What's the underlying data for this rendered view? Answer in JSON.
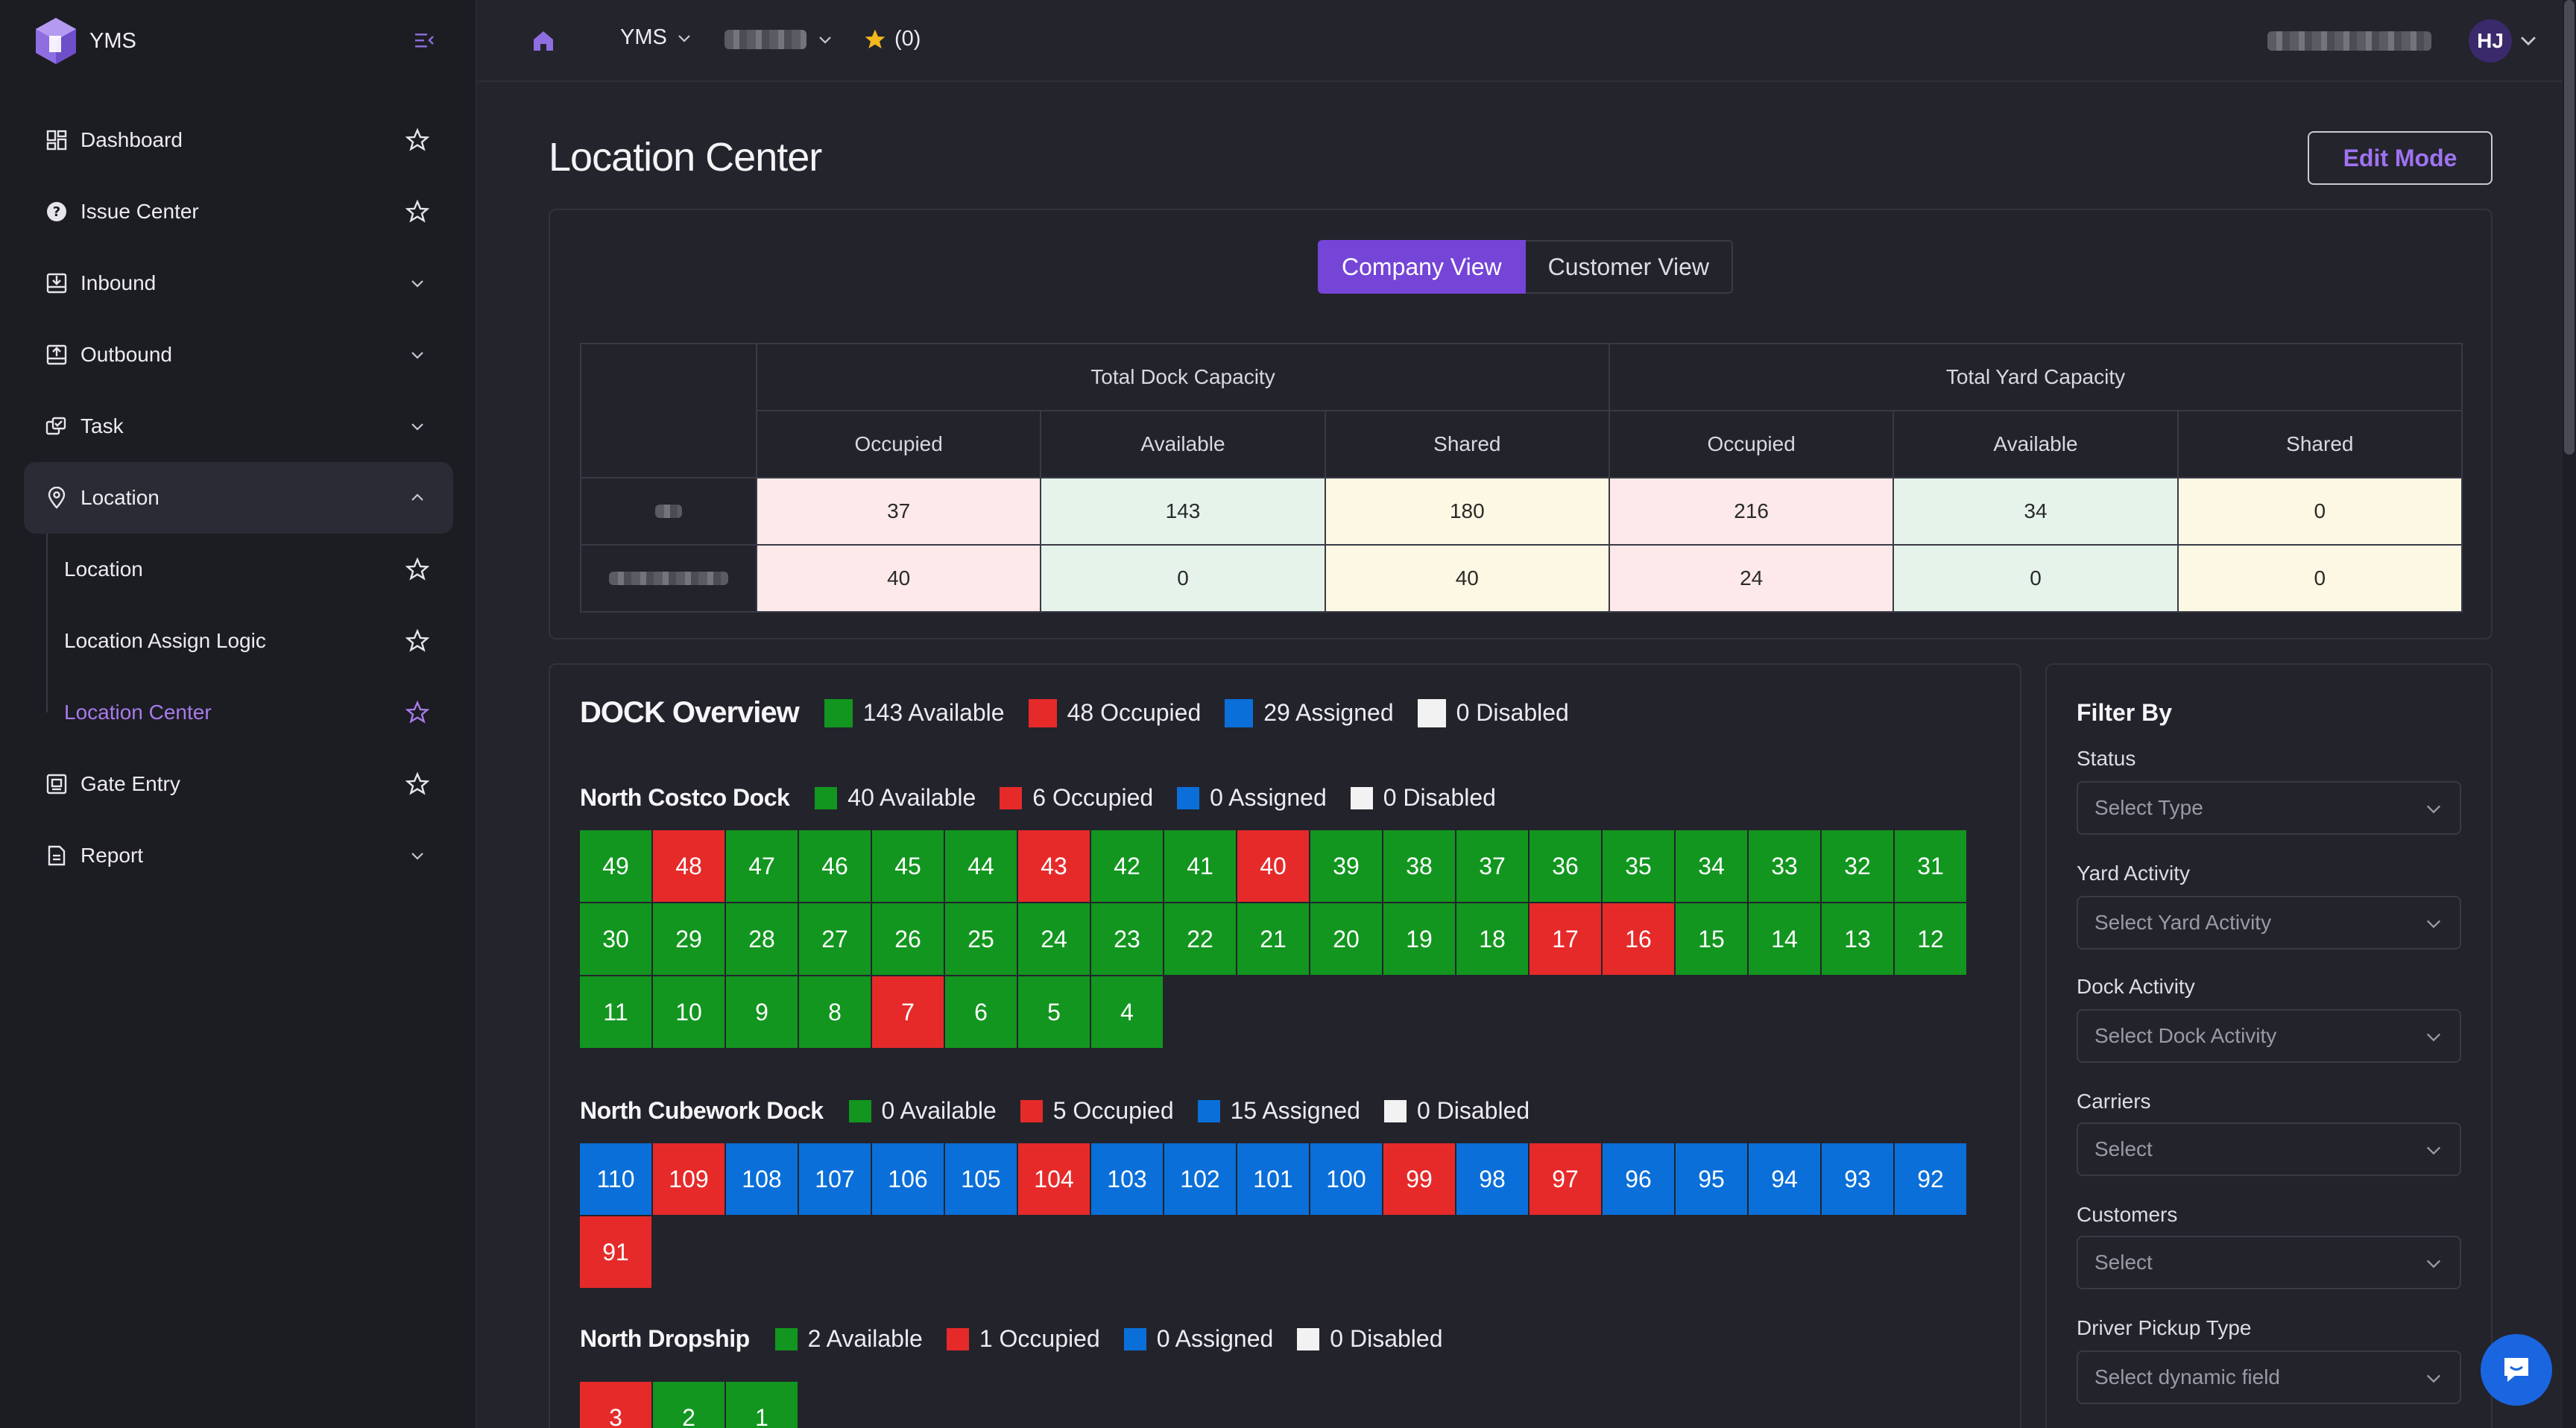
{
  "app": {
    "name": "YMS",
    "accent": "#7445d6"
  },
  "sidebar": {
    "items": [
      {
        "label": "Dashboard",
        "icon": "dashboard-icon",
        "tail": "star"
      },
      {
        "label": "Issue Center",
        "icon": "help-circle-icon",
        "tail": "star"
      },
      {
        "label": "Inbound",
        "icon": "inbound-icon",
        "tail": "chevron-down"
      },
      {
        "label": "Outbound",
        "icon": "outbound-icon",
        "tail": "chevron-down"
      },
      {
        "label": "Task",
        "icon": "task-icon",
        "tail": "chevron-down"
      },
      {
        "label": "Location",
        "icon": "map-pin-icon",
        "tail": "chevron-up"
      }
    ],
    "location_sub": [
      {
        "label": "Location"
      },
      {
        "label": "Location Assign Logic"
      },
      {
        "label": "Location Center"
      }
    ],
    "bottom_items": [
      {
        "label": "Gate Entry",
        "icon": "gate-icon",
        "tail": "star"
      },
      {
        "label": "Report",
        "icon": "report-icon",
        "tail": "chevron-down"
      }
    ]
  },
  "topbar": {
    "app_select": "YMS",
    "favorites": "(0)",
    "avatar_initials": "HJ"
  },
  "page": {
    "title": "Location Center",
    "edit_button": "Edit Mode",
    "view_toggle": {
      "company": "Company View",
      "customer": "Customer View"
    }
  },
  "capacity": {
    "group_headers": [
      "Total Dock Capacity",
      "Total Yard Capacity"
    ],
    "sub_headers": [
      "Occupied",
      "Available",
      "Shared",
      "Occupied",
      "Available",
      "Shared"
    ],
    "rows": [
      {
        "values": [
          "37",
          "143",
          "180",
          "216",
          "34",
          "0"
        ]
      },
      {
        "values": [
          "40",
          "0",
          "40",
          "24",
          "0",
          "0"
        ]
      }
    ]
  },
  "dock_overview": {
    "title": "DOCK Overview",
    "legend": [
      "143 Available",
      "48 Occupied",
      "29 Assigned",
      "0 Disabled"
    ],
    "docks": [
      {
        "name": "North Costco Dock",
        "legend": [
          "40 Available",
          "6 Occupied",
          "0 Assigned",
          "0 Disabled"
        ],
        "cells": [
          [
            "49",
            "g"
          ],
          [
            "48",
            "r"
          ],
          [
            "47",
            "g"
          ],
          [
            "46",
            "g"
          ],
          [
            "45",
            "g"
          ],
          [
            "44",
            "g"
          ],
          [
            "43",
            "r"
          ],
          [
            "42",
            "g"
          ],
          [
            "41",
            "g"
          ],
          [
            "40",
            "r"
          ],
          [
            "39",
            "g"
          ],
          [
            "38",
            "g"
          ],
          [
            "37",
            "g"
          ],
          [
            "36",
            "g"
          ],
          [
            "35",
            "g"
          ],
          [
            "34",
            "g"
          ],
          [
            "33",
            "g"
          ],
          [
            "32",
            "g"
          ],
          [
            "31",
            "g"
          ],
          [
            "30",
            "g"
          ],
          [
            "29",
            "g"
          ],
          [
            "28",
            "g"
          ],
          [
            "27",
            "g"
          ],
          [
            "26",
            "g"
          ],
          [
            "25",
            "g"
          ],
          [
            "24",
            "g"
          ],
          [
            "23",
            "g"
          ],
          [
            "22",
            "g"
          ],
          [
            "21",
            "g"
          ],
          [
            "20",
            "g"
          ],
          [
            "19",
            "g"
          ],
          [
            "18",
            "g"
          ],
          [
            "17",
            "r"
          ],
          [
            "16",
            "r"
          ],
          [
            "15",
            "g"
          ],
          [
            "14",
            "g"
          ],
          [
            "13",
            "g"
          ],
          [
            "12",
            "g"
          ],
          [
            "11",
            "g"
          ],
          [
            "10",
            "g"
          ],
          [
            "9",
            "g"
          ],
          [
            "8",
            "g"
          ],
          [
            "7",
            "r"
          ],
          [
            "6",
            "g"
          ],
          [
            "5",
            "g"
          ],
          [
            "4",
            "g"
          ]
        ]
      },
      {
        "name": "North Cubework Dock",
        "legend": [
          "0 Available",
          "5 Occupied",
          "15 Assigned",
          "0 Disabled"
        ],
        "cells": [
          [
            "110",
            "b"
          ],
          [
            "109",
            "r"
          ],
          [
            "108",
            "b"
          ],
          [
            "107",
            "b"
          ],
          [
            "106",
            "b"
          ],
          [
            "105",
            "b"
          ],
          [
            "104",
            "r"
          ],
          [
            "103",
            "b"
          ],
          [
            "102",
            "b"
          ],
          [
            "101",
            "b"
          ],
          [
            "100",
            "b"
          ],
          [
            "99",
            "r"
          ],
          [
            "98",
            "b"
          ],
          [
            "97",
            "r"
          ],
          [
            "96",
            "b"
          ],
          [
            "95",
            "b"
          ],
          [
            "94",
            "b"
          ],
          [
            "93",
            "b"
          ],
          [
            "92",
            "b"
          ],
          [
            "91",
            "r"
          ]
        ]
      },
      {
        "name": "North Dropship",
        "legend": [
          "2 Available",
          "1 Occupied",
          "0 Assigned",
          "0 Disabled"
        ],
        "cells": [
          [
            "3",
            "r"
          ],
          [
            "2",
            "g"
          ],
          [
            "1",
            "g"
          ]
        ]
      }
    ]
  },
  "filter": {
    "title": "Filter By",
    "fields": [
      {
        "label": "Status",
        "placeholder": "Select Type"
      },
      {
        "label": "Yard Activity",
        "placeholder": "Select Yard Activity"
      },
      {
        "label": "Dock Activity",
        "placeholder": "Select Dock Activity"
      },
      {
        "label": "Carriers",
        "placeholder": "Select"
      },
      {
        "label": "Customers",
        "placeholder": "Select"
      },
      {
        "label": "Driver Pickup Type",
        "placeholder": "Select dynamic field"
      }
    ]
  },
  "colors": {
    "available": "#12961f",
    "occupied": "#e62a2a",
    "assigned": "#0a6fd8",
    "disabled": "#f2f2f2"
  }
}
